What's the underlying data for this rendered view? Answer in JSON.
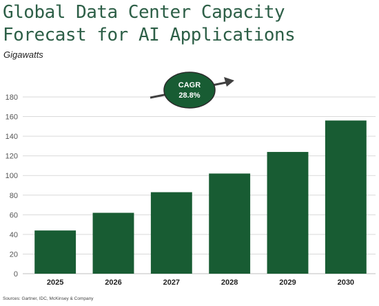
{
  "header": {
    "title": "Global Data Center Capacity Forecast for AI Applications",
    "subtitle": "Gigawatts"
  },
  "footer": {
    "source": "Sources: Gartner, IDC, McKinsey & Company"
  },
  "colors": {
    "bar": "#185c33",
    "title": "#2d5f47",
    "annotation_fill": "#185c33",
    "arrow": "#404040"
  },
  "chart_data": {
    "type": "bar",
    "categories": [
      "2025",
      "2026",
      "2027",
      "2028",
      "2029",
      "2030"
    ],
    "values": [
      44,
      62,
      83,
      102,
      124,
      156
    ],
    "title": "Global Data Center Capacity Forecast for AI Applications",
    "ylabel": "Gigawatts",
    "xlabel": "",
    "ylim": [
      0,
      180
    ],
    "yticks": [
      0,
      20,
      40,
      60,
      80,
      100,
      120,
      140,
      160,
      180
    ],
    "grid": true,
    "legend": "none",
    "annotation": {
      "line1": "CAGR",
      "line2": "28.8%",
      "shape": "ellipse-with-up-arrow"
    }
  }
}
